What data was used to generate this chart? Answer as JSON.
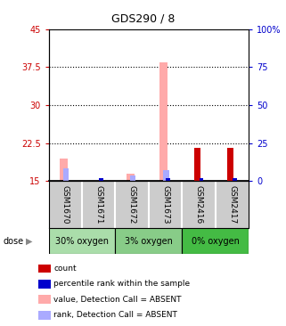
{
  "title": "GDS290 / 8",
  "samples": [
    "GSM1670",
    "GSM1671",
    "GSM1672",
    "GSM1673",
    "GSM2416",
    "GSM2417"
  ],
  "groups": [
    "30% oxygen",
    "3% oxygen",
    "0% oxygen"
  ],
  "group_colors": [
    "#aaddaa",
    "#88cc88",
    "#44bb44"
  ],
  "group_membership": [
    0,
    0,
    1,
    1,
    2,
    2
  ],
  "ylim_left": [
    15,
    45
  ],
  "ylim_right": [
    0,
    100
  ],
  "yticks_left": [
    15,
    22.5,
    30,
    37.5,
    45
  ],
  "yticks_right": [
    0,
    25,
    50,
    75,
    100
  ],
  "ytick_labels_left": [
    "15",
    "22.5",
    "30",
    "37.5",
    "45"
  ],
  "ytick_labels_right": [
    "0",
    "25",
    "50",
    "75",
    "100%"
  ],
  "hlines": [
    22.5,
    30,
    37.5
  ],
  "bar_bottom": 15,
  "count_values": [
    0,
    0,
    0,
    0,
    6.5,
    6.5
  ],
  "rank_values": [
    0,
    1,
    0,
    1,
    1,
    1
  ],
  "absent_value_values": [
    19.5,
    0,
    16.5,
    38.5,
    0,
    0
  ],
  "absent_rank_values": [
    17.5,
    0,
    16.0,
    17.2,
    0,
    0
  ],
  "count_color": "#cc0000",
  "rank_color": "#0000cc",
  "absent_value_color": "#ffaaaa",
  "absent_rank_color": "#aaaaff",
  "legend_items": [
    {
      "color": "#cc0000",
      "label": "count"
    },
    {
      "color": "#0000cc",
      "label": "percentile rank within the sample"
    },
    {
      "color": "#ffaaaa",
      "label": "value, Detection Call = ABSENT"
    },
    {
      "color": "#aaaaff",
      "label": "rank, Detection Call = ABSENT"
    }
  ],
  "left_ytick_color": "#cc0000",
  "right_ytick_color": "#0000cc",
  "sample_area_color": "#cccccc"
}
